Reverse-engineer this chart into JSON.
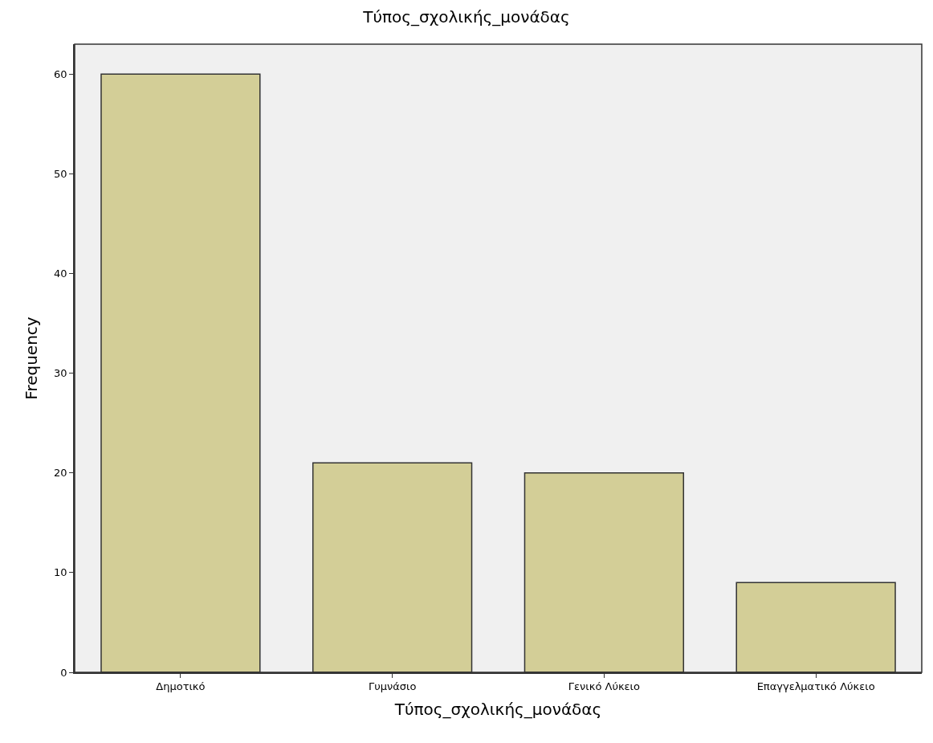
{
  "chart_data": {
    "type": "bar",
    "title": "Τύπος_σχολικής_μονάδας",
    "xlabel": "Τύπος_σχολικής_μονάδας",
    "ylabel": "Frequency",
    "categories": [
      "Δημοτικό",
      "Γυμνάσιο",
      "Γενικό Λύκειο",
      "Επαγγελματικό Λύκειο"
    ],
    "values": [
      60,
      21,
      20,
      9
    ],
    "color": "#d3ce97",
    "ylim": [
      0,
      63
    ],
    "yticks": [
      0,
      10,
      20,
      30,
      40,
      50,
      60
    ],
    "grid": false,
    "legend": false
  }
}
